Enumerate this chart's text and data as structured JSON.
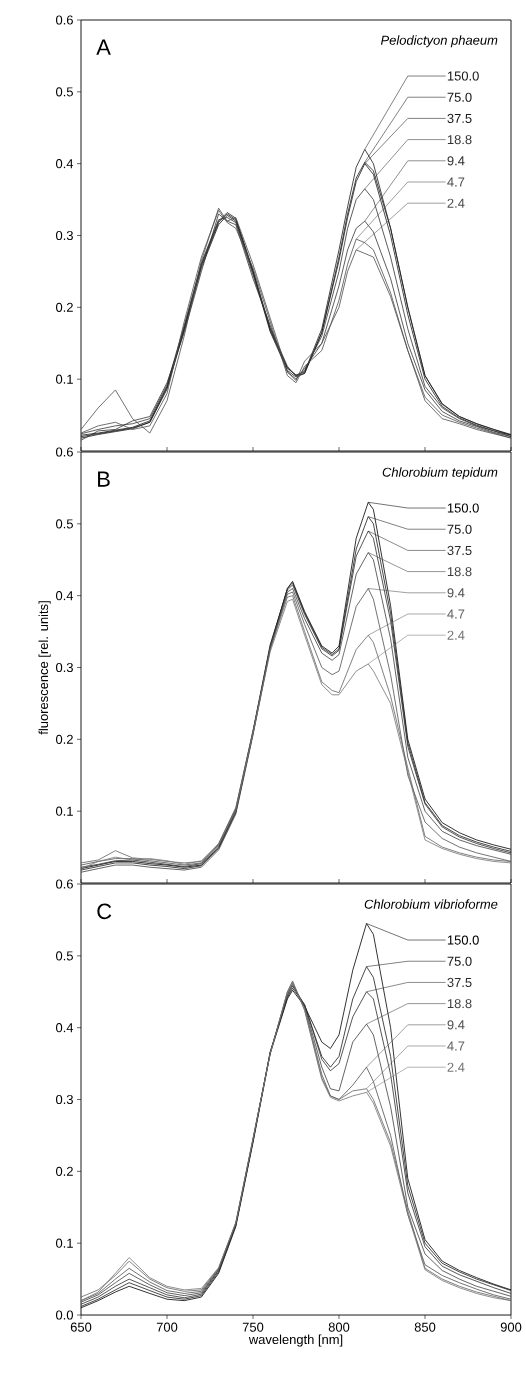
{
  "chart_data": [
    {
      "type": "line",
      "title": "A",
      "subtitle": "Pelodictyon phaeum",
      "tick_labels": "y",
      "xlim": [
        650,
        900
      ],
      "xticks": [
        650,
        700,
        750,
        800,
        850,
        900
      ],
      "ylim": [
        0,
        0.6
      ],
      "yticks": [
        0.1,
        0.2,
        0.3,
        0.4,
        0.5,
        0.6
      ],
      "x": [
        650,
        660,
        670,
        680,
        690,
        700,
        710,
        720,
        730,
        735,
        740,
        750,
        760,
        770,
        775,
        780,
        790,
        800,
        805,
        810,
        815,
        820,
        830,
        840,
        850,
        860,
        870,
        880,
        890,
        900
      ],
      "series": [
        {
          "name": "150.0",
          "color": "#1a1a1a",
          "values": [
            0.02,
            0.024,
            0.028,
            0.032,
            0.04,
            0.088,
            0.17,
            0.258,
            0.318,
            0.33,
            0.322,
            0.25,
            0.168,
            0.115,
            0.106,
            0.11,
            0.17,
            0.28,
            0.34,
            0.395,
            0.42,
            0.4,
            0.31,
            0.2,
            0.105,
            0.065,
            0.048,
            0.038,
            0.03,
            0.022
          ]
        },
        {
          "name": "75.0",
          "color": "#1a1a1a",
          "values": [
            0.022,
            0.025,
            0.029,
            0.033,
            0.042,
            0.09,
            0.172,
            0.26,
            0.32,
            0.332,
            0.324,
            0.252,
            0.17,
            0.116,
            0.105,
            0.108,
            0.165,
            0.27,
            0.33,
            0.38,
            0.402,
            0.39,
            0.31,
            0.2,
            0.105,
            0.066,
            0.048,
            0.038,
            0.03,
            0.023
          ]
        },
        {
          "name": "37.5",
          "color": "#1a1a1a",
          "values": [
            0.018,
            0.023,
            0.027,
            0.031,
            0.04,
            0.086,
            0.168,
            0.255,
            0.315,
            0.328,
            0.32,
            0.248,
            0.166,
            0.112,
            0.103,
            0.108,
            0.165,
            0.265,
            0.325,
            0.375,
            0.4,
            0.385,
            0.3,
            0.19,
            0.1,
            0.062,
            0.046,
            0.036,
            0.028,
            0.022
          ]
        },
        {
          "name": "18.8",
          "color": "#333333",
          "values": [
            0.024,
            0.03,
            0.035,
            0.038,
            0.045,
            0.092,
            0.175,
            0.262,
            0.322,
            0.325,
            0.318,
            0.245,
            0.172,
            0.118,
            0.104,
            0.112,
            0.16,
            0.25,
            0.31,
            0.35,
            0.365,
            0.35,
            0.27,
            0.17,
            0.09,
            0.06,
            0.045,
            0.035,
            0.028,
            0.02
          ]
        },
        {
          "name": "9.4",
          "color": "#333333",
          "values": [
            0.015,
            0.028,
            0.03,
            0.042,
            0.048,
            0.095,
            0.165,
            0.25,
            0.33,
            0.32,
            0.315,
            0.24,
            0.175,
            0.11,
            0.1,
            0.115,
            0.15,
            0.23,
            0.28,
            0.31,
            0.32,
            0.305,
            0.24,
            0.15,
            0.085,
            0.055,
            0.042,
            0.034,
            0.026,
            0.02
          ]
        },
        {
          "name": "4.7",
          "color": "#4d4d4d",
          "values": [
            0.025,
            0.035,
            0.04,
            0.03,
            0.035,
            0.08,
            0.18,
            0.27,
            0.335,
            0.318,
            0.31,
            0.255,
            0.18,
            0.105,
            0.095,
            0.118,
            0.14,
            0.21,
            0.26,
            0.295,
            0.29,
            0.28,
            0.22,
            0.14,
            0.075,
            0.05,
            0.04,
            0.032,
            0.025,
            0.018
          ]
        },
        {
          "name": "2.4",
          "color": "#4d4d4d",
          "values": [
            0.03,
            0.06,
            0.085,
            0.045,
            0.025,
            0.07,
            0.16,
            0.265,
            0.338,
            0.32,
            0.325,
            0.26,
            0.185,
            0.11,
            0.098,
            0.125,
            0.15,
            0.2,
            0.25,
            0.28,
            0.275,
            0.27,
            0.215,
            0.14,
            0.07,
            0.045,
            0.038,
            0.03,
            0.024,
            0.018
          ]
        }
      ]
    },
    {
      "type": "line",
      "title": "B",
      "subtitle": "Chlorobium tepidum",
      "ylabel": "fluorescence [rel. units]",
      "tick_labels": "y",
      "xlim": [
        650,
        900
      ],
      "xticks": [
        650,
        700,
        750,
        800,
        850,
        900
      ],
      "ylim": [
        0,
        0.6
      ],
      "yticks": [
        0.1,
        0.2,
        0.3,
        0.4,
        0.5,
        0.6
      ],
      "x": [
        650,
        660,
        670,
        680,
        690,
        700,
        710,
        720,
        730,
        740,
        750,
        760,
        770,
        773,
        780,
        790,
        796,
        800,
        810,
        817,
        820,
        830,
        840,
        850,
        860,
        870,
        880,
        890,
        900
      ],
      "series": [
        {
          "name": "150.0",
          "color": "#000000",
          "values": [
            0.02,
            0.025,
            0.03,
            0.03,
            0.027,
            0.025,
            0.022,
            0.025,
            0.05,
            0.1,
            0.21,
            0.33,
            0.41,
            0.42,
            0.378,
            0.33,
            0.32,
            0.33,
            0.48,
            0.53,
            0.52,
            0.386,
            0.2,
            0.117,
            0.084,
            0.07,
            0.06,
            0.053,
            0.047
          ]
        },
        {
          "name": "75.0",
          "color": "#1a1a1a",
          "values": [
            0.018,
            0.023,
            0.028,
            0.028,
            0.025,
            0.023,
            0.02,
            0.024,
            0.048,
            0.098,
            0.208,
            0.328,
            0.41,
            0.418,
            0.376,
            0.328,
            0.318,
            0.326,
            0.465,
            0.51,
            0.5,
            0.375,
            0.195,
            0.112,
            0.08,
            0.066,
            0.057,
            0.05,
            0.044
          ]
        },
        {
          "name": "37.5",
          "color": "#2b2b2b",
          "values": [
            0.022,
            0.026,
            0.031,
            0.032,
            0.029,
            0.026,
            0.023,
            0.027,
            0.052,
            0.102,
            0.212,
            0.332,
            0.408,
            0.415,
            0.374,
            0.326,
            0.316,
            0.324,
            0.455,
            0.49,
            0.48,
            0.365,
            0.19,
            0.11,
            0.078,
            0.064,
            0.055,
            0.048,
            0.042
          ]
        },
        {
          "name": "18.8",
          "color": "#3d3d3d",
          "values": [
            0.015,
            0.02,
            0.025,
            0.025,
            0.022,
            0.02,
            0.018,
            0.022,
            0.046,
            0.096,
            0.206,
            0.326,
            0.405,
            0.41,
            0.368,
            0.32,
            0.31,
            0.318,
            0.43,
            0.46,
            0.45,
            0.34,
            0.175,
            0.1,
            0.072,
            0.06,
            0.052,
            0.046,
            0.04
          ]
        },
        {
          "name": "9.4",
          "color": "#4f4f4f",
          "values": [
            0.025,
            0.03,
            0.034,
            0.034,
            0.031,
            0.028,
            0.025,
            0.028,
            0.054,
            0.104,
            0.21,
            0.328,
            0.402,
            0.405,
            0.36,
            0.3,
            0.29,
            0.295,
            0.385,
            0.41,
            0.395,
            0.29,
            0.15,
            0.085,
            0.062,
            0.05,
            0.042,
            0.036,
            0.03
          ]
        },
        {
          "name": "4.7",
          "color": "#616161",
          "values": [
            0.028,
            0.032,
            0.045,
            0.035,
            0.033,
            0.03,
            0.028,
            0.03,
            0.055,
            0.105,
            0.212,
            0.325,
            0.398,
            0.4,
            0.35,
            0.28,
            0.268,
            0.265,
            0.325,
            0.345,
            0.335,
            0.26,
            0.16,
            0.065,
            0.05,
            0.042,
            0.036,
            0.032,
            0.03
          ]
        },
        {
          "name": "2.4",
          "color": "#737373",
          "values": [
            0.02,
            0.03,
            0.036,
            0.032,
            0.034,
            0.031,
            0.026,
            0.031,
            0.053,
            0.101,
            0.208,
            0.322,
            0.392,
            0.395,
            0.345,
            0.276,
            0.262,
            0.262,
            0.295,
            0.305,
            0.295,
            0.25,
            0.155,
            0.06,
            0.048,
            0.04,
            0.034,
            0.03,
            0.028
          ]
        }
      ]
    },
    {
      "type": "line",
      "title": "C",
      "subtitle": "Chlorobium vibrioforme",
      "xlabel": "wavelength [nm]",
      "xlim": [
        650,
        900
      ],
      "xticks": [
        650,
        700,
        750,
        800,
        850,
        900
      ],
      "ylim": [
        0,
        0.6
      ],
      "yticks": [
        {
          "value": 0,
          "label": "0.0"
        },
        0.1,
        0.2,
        0.3,
        0.4,
        0.5,
        0.6
      ],
      "x": [
        650,
        660,
        670,
        678,
        690,
        700,
        710,
        720,
        730,
        740,
        750,
        760,
        770,
        773,
        780,
        790,
        795,
        800,
        808,
        816,
        820,
        830,
        840,
        850,
        860,
        870,
        880,
        890,
        900
      ],
      "series": [
        {
          "name": "150.0",
          "color": "#000000",
          "values": [
            0.01,
            0.02,
            0.032,
            0.04,
            0.03,
            0.022,
            0.02,
            0.025,
            0.058,
            0.123,
            0.24,
            0.364,
            0.44,
            0.452,
            0.43,
            0.38,
            0.371,
            0.39,
            0.48,
            0.545,
            0.53,
            0.4,
            0.19,
            0.105,
            0.075,
            0.062,
            0.052,
            0.043,
            0.035
          ]
        },
        {
          "name": "75.0",
          "color": "#1a1a1a",
          "values": [
            0.012,
            0.022,
            0.035,
            0.045,
            0.034,
            0.025,
            0.022,
            0.027,
            0.06,
            0.125,
            0.242,
            0.366,
            0.442,
            0.455,
            0.432,
            0.36,
            0.345,
            0.36,
            0.44,
            0.485,
            0.47,
            0.36,
            0.18,
            0.1,
            0.072,
            0.06,
            0.05,
            0.042,
            0.034
          ]
        },
        {
          "name": "37.5",
          "color": "#2b2b2b",
          "values": [
            0.015,
            0.025,
            0.04,
            0.05,
            0.038,
            0.028,
            0.024,
            0.029,
            0.062,
            0.126,
            0.243,
            0.366,
            0.444,
            0.458,
            0.432,
            0.356,
            0.34,
            0.35,
            0.415,
            0.45,
            0.44,
            0.335,
            0.17,
            0.095,
            0.068,
            0.056,
            0.047,
            0.038,
            0.03
          ]
        },
        {
          "name": "18.8",
          "color": "#3d3d3d",
          "values": [
            0.018,
            0.028,
            0.045,
            0.058,
            0.042,
            0.031,
            0.027,
            0.031,
            0.063,
            0.127,
            0.244,
            0.365,
            0.446,
            0.46,
            0.43,
            0.345,
            0.315,
            0.312,
            0.38,
            0.405,
            0.39,
            0.29,
            0.15,
            0.085,
            0.062,
            0.05,
            0.04,
            0.033,
            0.026
          ]
        },
        {
          "name": "9.4",
          "color": "#4f4f4f",
          "values": [
            0.02,
            0.03,
            0.05,
            0.065,
            0.046,
            0.034,
            0.03,
            0.033,
            0.064,
            0.128,
            0.245,
            0.365,
            0.448,
            0.462,
            0.428,
            0.335,
            0.305,
            0.3,
            0.32,
            0.345,
            0.325,
            0.25,
            0.14,
            0.07,
            0.055,
            0.045,
            0.036,
            0.028,
            0.022
          ]
        },
        {
          "name": "4.7",
          "color": "#616161",
          "values": [
            0.025,
            0.035,
            0.055,
            0.075,
            0.05,
            0.038,
            0.033,
            0.035,
            0.065,
            0.128,
            0.245,
            0.364,
            0.45,
            0.465,
            0.425,
            0.33,
            0.305,
            0.3,
            0.312,
            0.315,
            0.3,
            0.24,
            0.145,
            0.065,
            0.05,
            0.04,
            0.032,
            0.026,
            0.02
          ]
        },
        {
          "name": "2.4",
          "color": "#737373",
          "values": [
            0.02,
            0.032,
            0.058,
            0.08,
            0.052,
            0.04,
            0.035,
            0.037,
            0.066,
            0.129,
            0.246,
            0.363,
            0.45,
            0.464,
            0.424,
            0.328,
            0.303,
            0.298,
            0.305,
            0.31,
            0.295,
            0.235,
            0.14,
            0.063,
            0.048,
            0.038,
            0.03,
            0.024,
            0.02
          ]
        }
      ]
    }
  ]
}
